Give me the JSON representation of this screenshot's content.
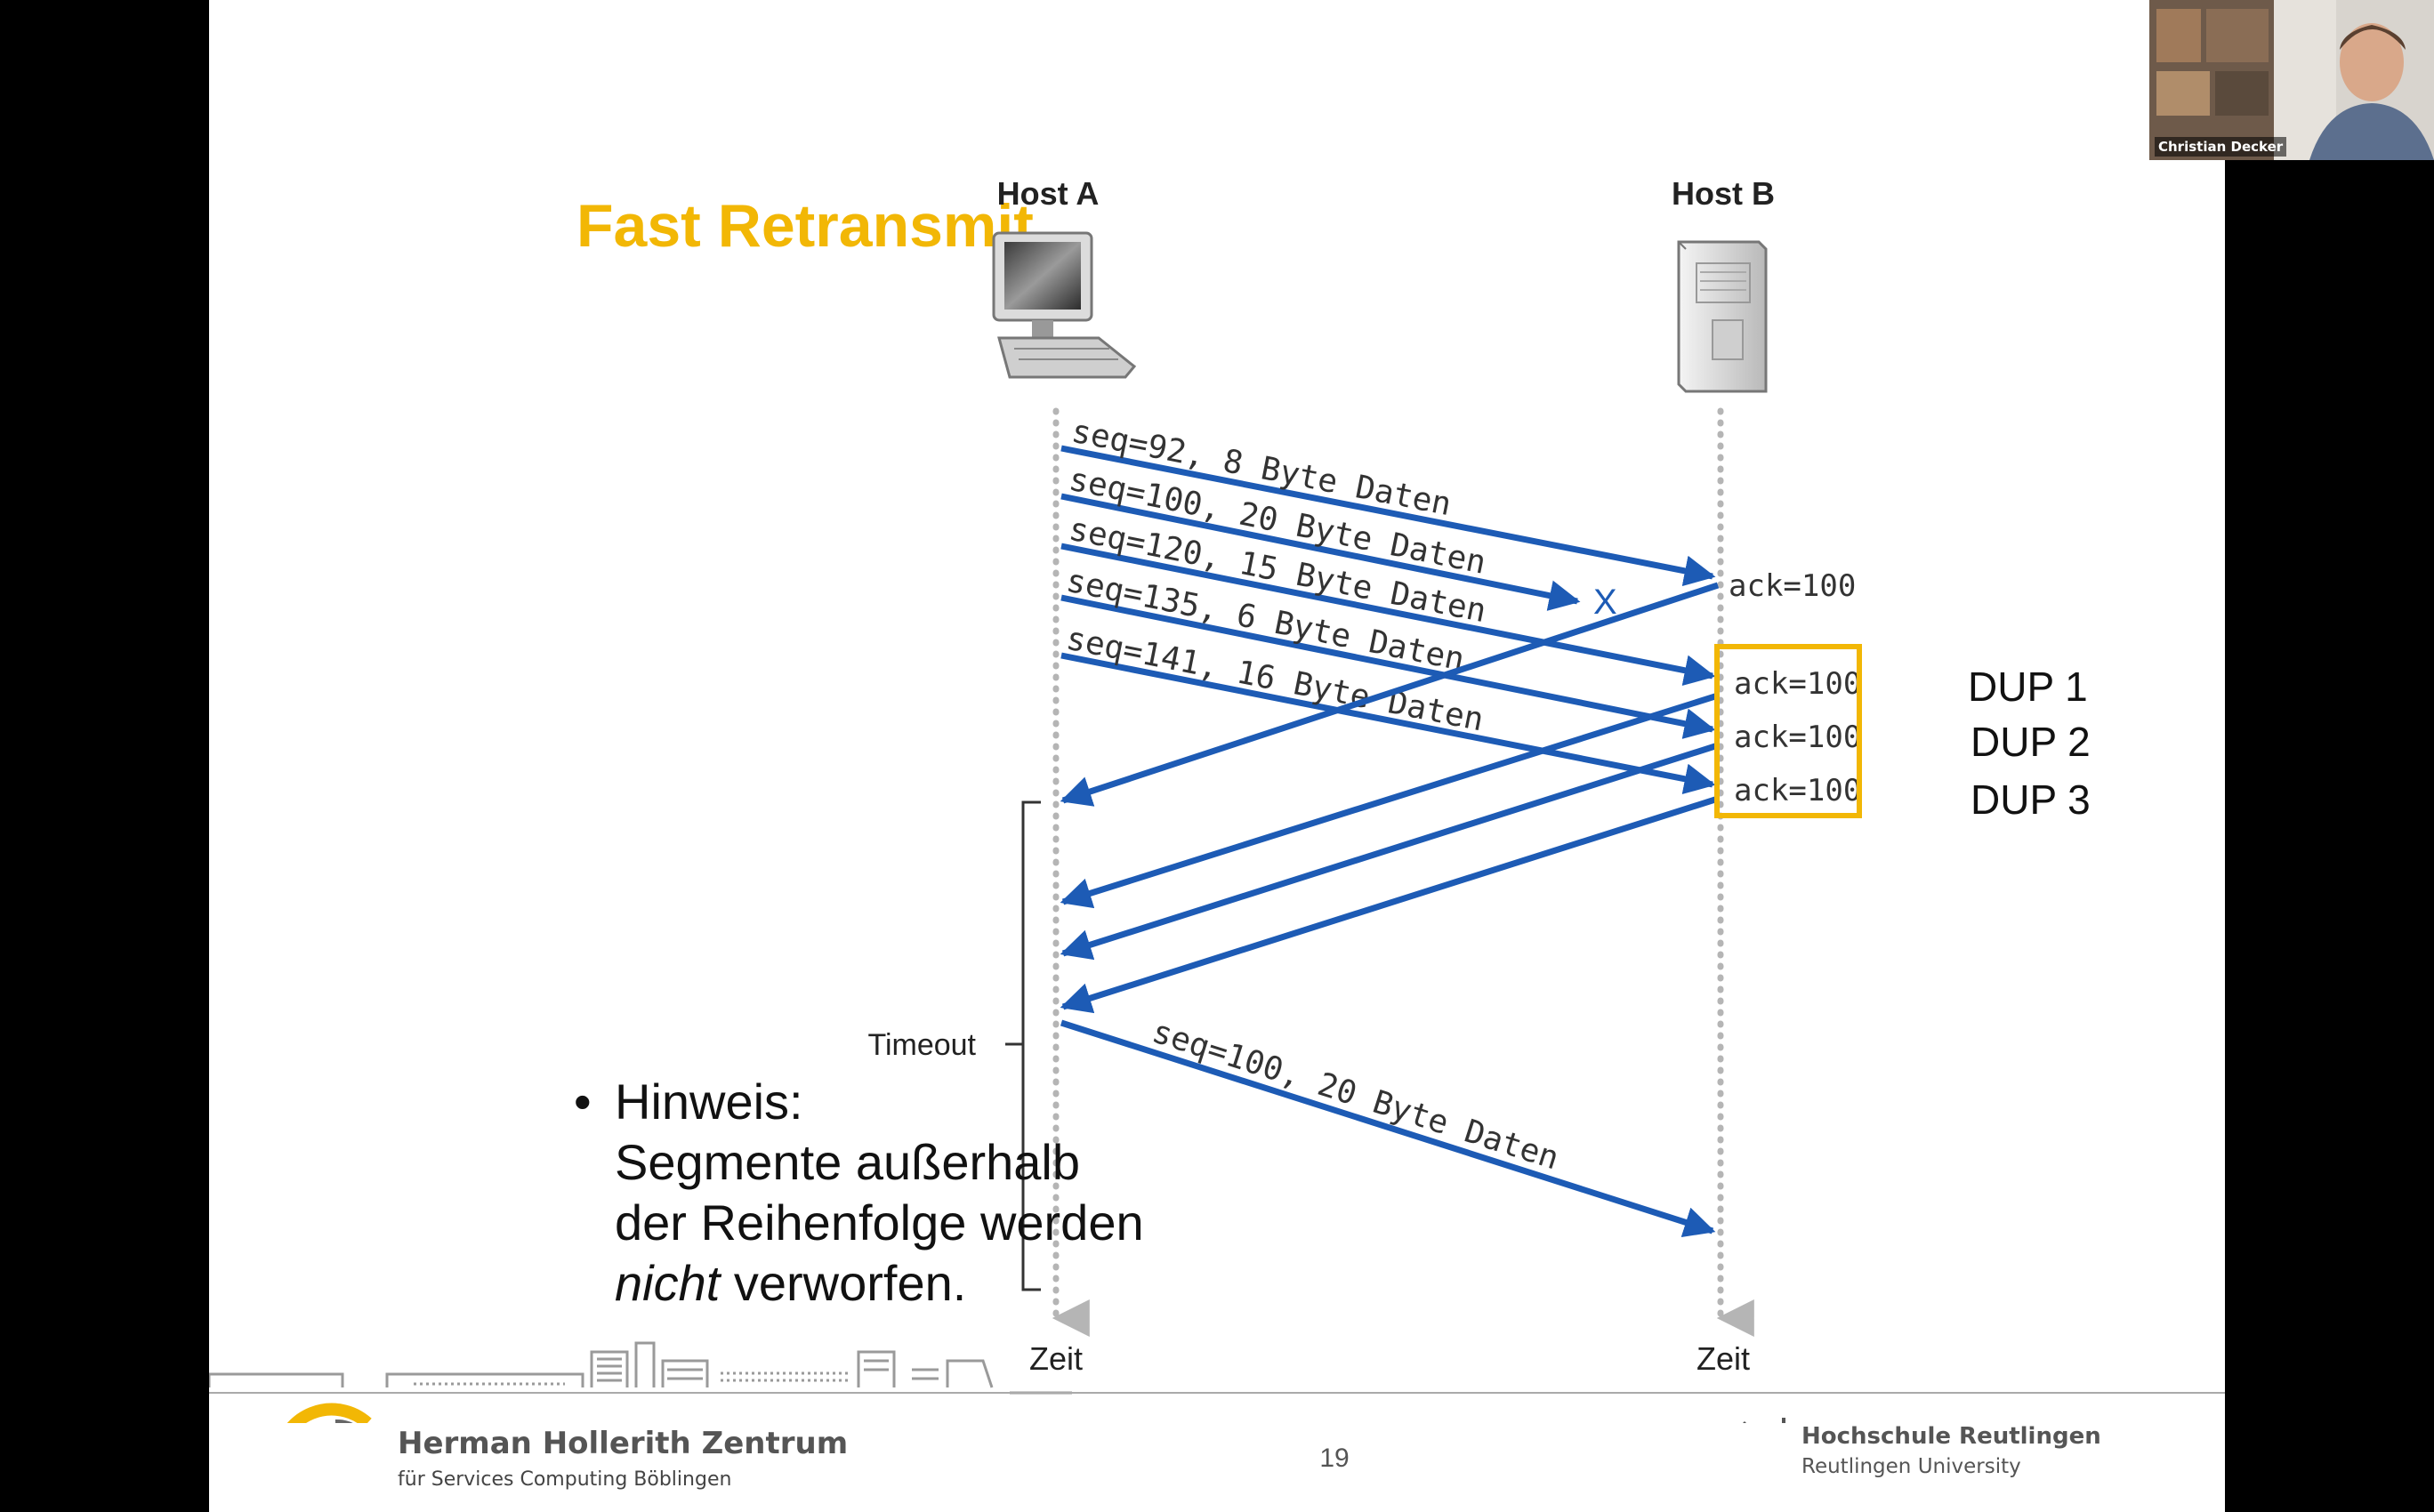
{
  "slide": {
    "title": "Fast Retransmit",
    "page_number": "19"
  },
  "diagram": {
    "host_a_label": "Host A",
    "host_b_label": "Host B",
    "time_label_a": "Zeit",
    "time_label_b": "Zeit",
    "timeout_label": "Timeout",
    "lost_marker": "X",
    "segments": [
      "seq=92, 8 Byte Daten",
      "seq=100, 20 Byte Daten",
      "seq=120, 15 Byte Daten",
      "seq=135, 6 Byte Daten",
      "seq=141, 16 Byte Daten"
    ],
    "acks": [
      "ack=100",
      "ack=100",
      "ack=100",
      "ack=100"
    ],
    "dups": [
      "DUP 1",
      "DUP 2",
      "DUP 3"
    ],
    "retransmission": "seq=100, 20 Byte Daten",
    "arrow_color": "#1d5bb5",
    "highlight_color": "#f2b705"
  },
  "note": {
    "bullet": "•",
    "heading": "Hinweis:",
    "line1": "Segmente außerhalb",
    "line2": "der Reihenfolge werden",
    "emphasis": "nicht",
    "line3_rest": " verworfen."
  },
  "footer": {
    "institute_name": "Herman Hollerith Zentrum",
    "institute_sub": "für Services Computing Böblingen",
    "university_name": "Hochschule Reutlingen",
    "university_sub": "Reutlingen University"
  },
  "webcam": {
    "participant_name": "Christian Decker"
  }
}
